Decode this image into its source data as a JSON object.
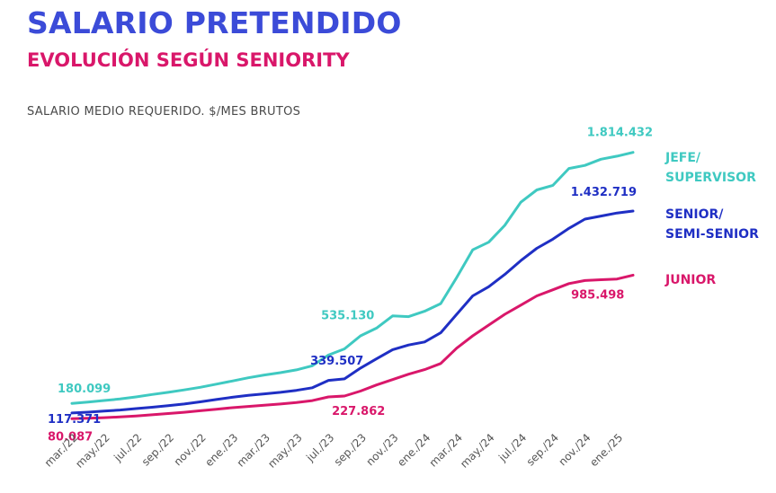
{
  "title": "SALARIO PRETENDIDO",
  "subtitle": "EVOLUCIÓN SEGÚN SENIORITY",
  "caption": "SALARIO MEDIO REQUERIDO. $/MES BRUTOS",
  "colors": {
    "title": "#3b4bd8",
    "subtitle": "#d9176a",
    "jefe": "#3fc9c1",
    "senior": "#1f2fc4",
    "junior": "#d9176a"
  },
  "chart_data": {
    "type": "line",
    "title": "SALARIO PRETENDIDO",
    "subtitle": "EVOLUCIÓN SEGÚN SENIORITY",
    "ylabel": "SALARIO MEDIO REQUERIDO. $/MES BRUTOS",
    "xlabel": "",
    "ylim": [
      0,
      1900000
    ],
    "grid": false,
    "legend": "right",
    "x": [
      "mar./22",
      "abr./22",
      "may./22",
      "jun./22",
      "jul./22",
      "ago./22",
      "sep./22",
      "oct./22",
      "nov./22",
      "dic./22",
      "ene./23",
      "feb./23",
      "mar./23",
      "abr./23",
      "may./23",
      "jun./23",
      "jul./23",
      "ago./23",
      "sep./23",
      "oct./23",
      "nov./23",
      "dic./23",
      "ene./24",
      "feb./24",
      "mar./24",
      "abr./24",
      "may./24",
      "jun./24",
      "jul./24",
      "ago./24",
      "sep./24",
      "oct./24",
      "nov./24",
      "dic./24",
      "ene./25",
      "feb./25"
    ],
    "tick_labels": [
      "mar./22",
      "may./22",
      "jul./22",
      "sep./22",
      "nov./22",
      "ene./23",
      "mar./23",
      "may./23",
      "jul./23",
      "sep./23",
      "nov./23",
      "ene./24",
      "mar./24",
      "may./24",
      "jul./24",
      "sep./24",
      "nov./24",
      "ene./25"
    ],
    "series": [
      {
        "name": "JEFE/ SUPERVISOR",
        "label_lines": [
          "JEFE/",
          "SUPERVISOR"
        ],
        "color": "#3fc9c1",
        "values": [
          180099,
          189000,
          199000,
          209000,
          222000,
          238000,
          252000,
          268000,
          285000,
          305000,
          326000,
          347000,
          365000,
          380000,
          398000,
          425000,
          495000,
          535130,
          620000,
          670000,
          750000,
          745000,
          780000,
          830000,
          1000000,
          1180000,
          1230000,
          1340000,
          1490000,
          1570000,
          1600000,
          1710000,
          1730000,
          1770000,
          1790000,
          1814432
        ],
        "annotations": [
          {
            "index": 0,
            "label": "180.099"
          },
          {
            "index": 17,
            "label": "535.130"
          },
          {
            "index": 35,
            "label": "1.814.432"
          }
        ]
      },
      {
        "name": "SENIOR/ SEMI-SENIOR",
        "label_lines": [
          "SENIOR/",
          "SEMI-SENIOR"
        ],
        "color": "#1f2fc4",
        "values": [
          117371,
          123000,
          130000,
          137000,
          146000,
          155000,
          165000,
          176000,
          190000,
          205000,
          220000,
          232000,
          242000,
          252000,
          265000,
          282000,
          330000,
          339507,
          410000,
          470000,
          530000,
          560000,
          580000,
          640000,
          760000,
          880000,
          940000,
          1020000,
          1110000,
          1190000,
          1250000,
          1320000,
          1380000,
          1400000,
          1420000,
          1432719
        ],
        "annotations": [
          {
            "index": 0,
            "label": "117.371"
          },
          {
            "index": 17,
            "label": "339.507"
          },
          {
            "index": 35,
            "label": "1.432.719"
          }
        ]
      },
      {
        "name": "JUNIOR",
        "label_lines": [
          "JUNIOR"
        ],
        "color": "#d9176a",
        "values": [
          80087,
          83000,
          87000,
          92000,
          98000,
          106000,
          114000,
          122000,
          132000,
          142000,
          152000,
          160000,
          168000,
          176000,
          186000,
          198000,
          222000,
          227862,
          260000,
          300000,
          335000,
          370000,
          400000,
          440000,
          540000,
          620000,
          690000,
          760000,
          820000,
          880000,
          920000,
          960000,
          980000,
          985498,
          990000,
          1015000
        ],
        "annotations": [
          {
            "index": 0,
            "label": "80.087"
          },
          {
            "index": 17,
            "label": "227.862"
          },
          {
            "index": 33,
            "label": "985.498"
          }
        ]
      }
    ]
  }
}
